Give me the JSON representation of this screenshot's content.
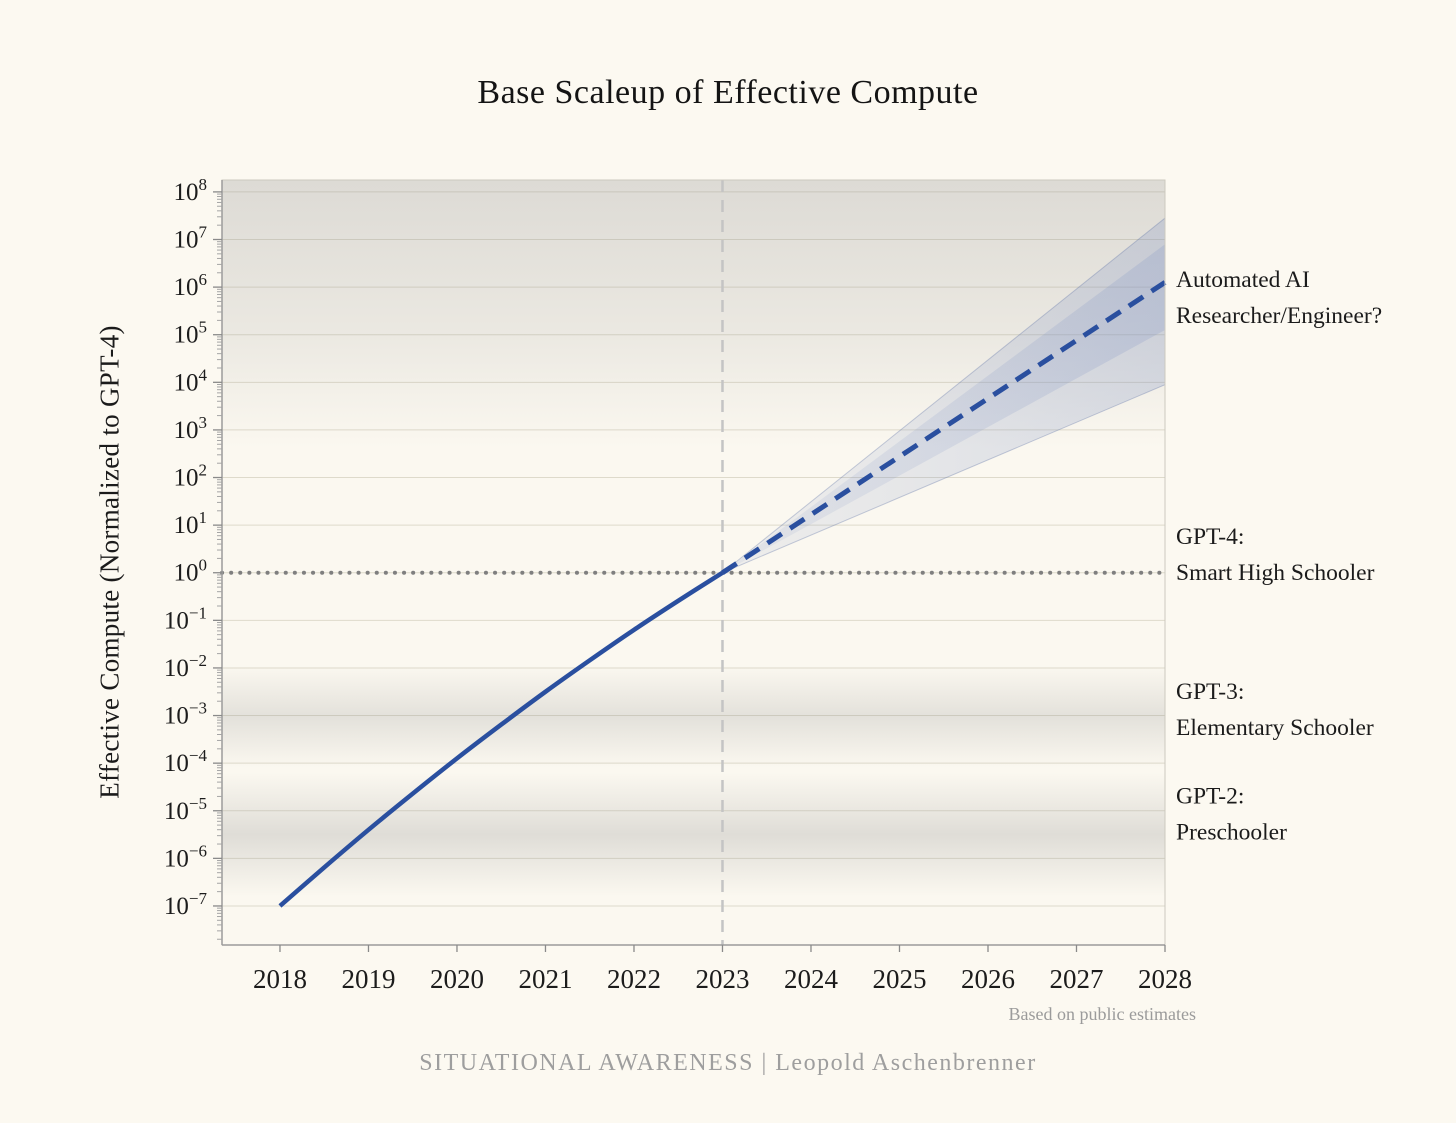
{
  "page": {
    "background": "#fcf9f1",
    "source_note": "Based on public estimates",
    "footer": "SITUATIONAL AWARENESS | Leopold Aschenbrenner"
  },
  "chart_data": {
    "type": "line",
    "title": "Base Scaleup of Effective Compute",
    "xlabel": "",
    "ylabel": "Effective Compute (Normalized to GPT-4)",
    "x_ticks": [
      2018,
      2019,
      2020,
      2021,
      2022,
      2023,
      2024,
      2025,
      2026,
      2027,
      2028
    ],
    "y_tick_exponents": [
      8,
      7,
      6,
      5,
      4,
      3,
      2,
      1,
      0,
      -1,
      -2,
      -3,
      -4,
      -5,
      -6,
      -7
    ],
    "x_domain": [
      2017.345,
      2028
    ],
    "y_domain_log10": [
      -7.82,
      8.25
    ],
    "grid": "horizontal",
    "colors": {
      "line": "#2a4f9f",
      "cone": "#7b8fc2",
      "grid": "#dedacb",
      "band": "#8f8f8f",
      "dotted_reference": "#7f7f7f",
      "dashed_reference": "#c4c4c4",
      "axis": "#9b9b9b",
      "tick_label": "#1c1c1c"
    },
    "series": [
      {
        "name": "historical effective compute",
        "style": "solid",
        "x": [
          2018,
          2018.5,
          2019,
          2019.5,
          2020,
          2020.5,
          2021,
          2021.5,
          2022,
          2022.5,
          2023
        ],
        "log10_y": [
          -7.0,
          -6.19,
          -5.4,
          -4.64,
          -3.9,
          -3.19,
          -2.5,
          -1.84,
          -1.2,
          -0.59,
          0
        ]
      },
      {
        "name": "projected effective compute",
        "style": "dashed",
        "x": [
          2023,
          2028
        ],
        "log10_y": [
          0,
          6.1
        ]
      }
    ],
    "uncertainty_cone": {
      "apex": {
        "x": 2023,
        "log10_y": 0
      },
      "outer": {
        "x": 2028,
        "log10_top": 7.45,
        "log10_bottom": 3.95
      },
      "inner": {
        "x": 2028,
        "log10_top": 6.9,
        "log10_bottom": 5.1
      }
    },
    "reference_lines": [
      {
        "orientation": "horizontal",
        "log10_y": 0,
        "style": "dotted",
        "meaning": "GPT-4 level"
      },
      {
        "orientation": "vertical",
        "x": 2023,
        "style": "dashed",
        "meaning": "present day"
      }
    ],
    "bands": [
      {
        "name": "automated-ai-band",
        "log10_top": 8.25,
        "log10_bottom": 2.6,
        "peak": "top",
        "max_opacity": 0.28
      },
      {
        "name": "gpt3-band",
        "log10_top": -1.95,
        "log10_bottom": -4.1,
        "peak": "middle",
        "max_opacity": 0.22
      },
      {
        "name": "gpt2-band",
        "log10_top": -4.2,
        "log10_bottom": -6.8,
        "peak": "middle",
        "max_opacity": 0.26
      }
    ],
    "annotations": [
      {
        "name": "automated-ai-label",
        "lines": [
          "Automated AI",
          "Researcher/Engineer?"
        ],
        "log10_y": 6.0
      },
      {
        "name": "gpt4-label",
        "lines": [
          "GPT-4:",
          "Smart High Schooler"
        ],
        "log10_y": 0.6
      },
      {
        "name": "gpt3-label",
        "lines": [
          "GPT-3:",
          "Elementary Schooler"
        ],
        "log10_y": -2.65
      },
      {
        "name": "gpt2-label",
        "lines": [
          "GPT-2:",
          "Preschooler"
        ],
        "log10_y": -4.85
      }
    ]
  }
}
